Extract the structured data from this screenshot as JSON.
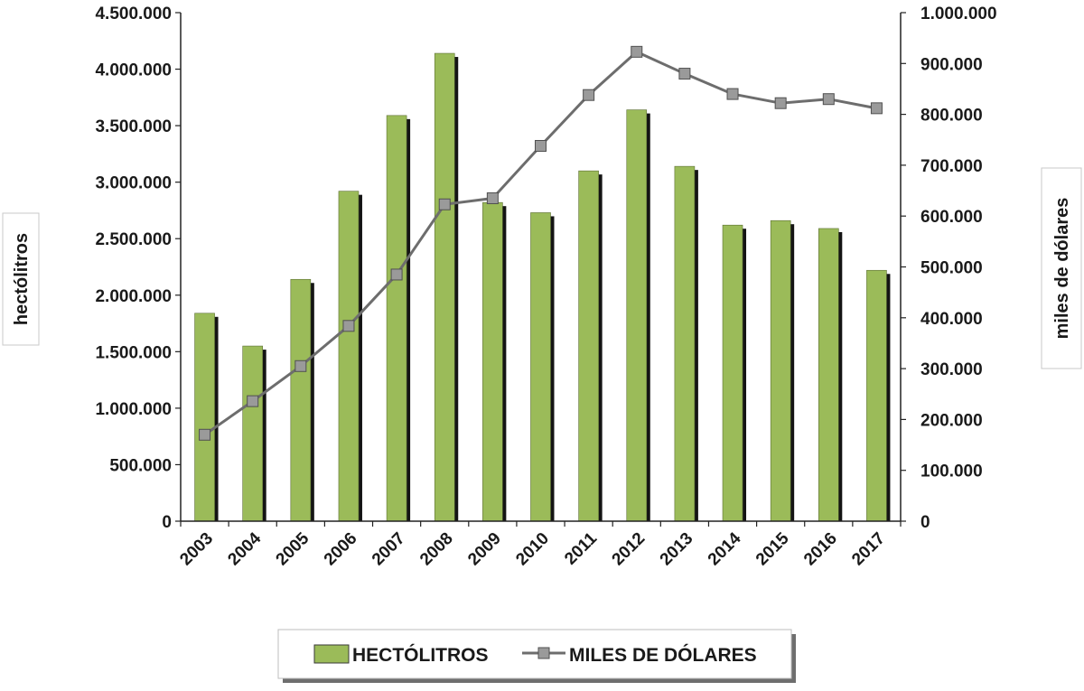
{
  "chart_data": {
    "type": "bar",
    "categories": [
      "2003",
      "2004",
      "2005",
      "2006",
      "2007",
      "2008",
      "2009",
      "2010",
      "2011",
      "2012",
      "2013",
      "2014",
      "2015",
      "2016",
      "2017"
    ],
    "series": [
      {
        "name": "HECTÓLITROS",
        "type": "bar",
        "axis": "left",
        "color": "#9bbb59",
        "values": [
          1840000,
          1550000,
          2140000,
          2920000,
          3590000,
          4140000,
          2820000,
          2730000,
          3100000,
          3640000,
          3140000,
          2620000,
          2660000,
          2590000,
          2220000
        ]
      },
      {
        "name": "MILES DE DÓLARES",
        "type": "line",
        "axis": "right",
        "color": "#6d6d6d",
        "marker_color": "#9a9a9a",
        "values": [
          170000,
          236000,
          305000,
          384000,
          485000,
          623000,
          635000,
          738000,
          838000,
          923000,
          880000,
          840000,
          822000,
          830000,
          812000
        ]
      }
    ],
    "y_left": {
      "label": "hectólitros",
      "lim": [
        0,
        4500000
      ],
      "ticks": [
        "0",
        "500.000",
        "1.000.000",
        "1.500.000",
        "2.000.000",
        "2.500.000",
        "3.000.000",
        "3.500.000",
        "4.000.000",
        "4.500.000"
      ]
    },
    "y_right": {
      "label": "miles de dólares",
      "lim": [
        0,
        1000000
      ],
      "ticks": [
        "0",
        "100.000",
        "200.000",
        "300.000",
        "400.000",
        "500.000",
        "600.000",
        "700.000",
        "800.000",
        "900.000",
        "1.000.000"
      ]
    },
    "grid": false,
    "legend": "bottom"
  }
}
